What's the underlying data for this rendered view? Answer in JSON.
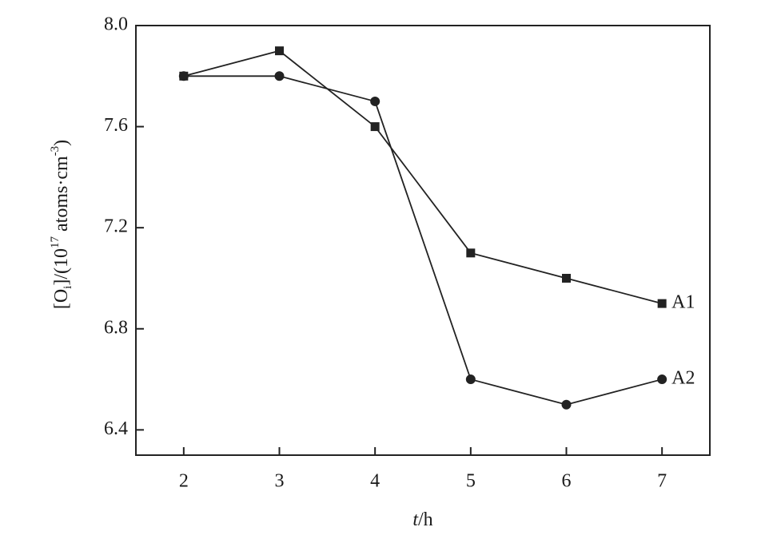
{
  "chart_data": {
    "type": "line",
    "x_label": [
      "t",
      "/h"
    ],
    "y_label": [
      "[O",
      "i",
      "]/(10",
      "17",
      " atoms·cm",
      "-3",
      ")"
    ],
    "x": [
      2,
      3,
      4,
      5,
      6,
      7
    ],
    "series": [
      {
        "name": "A1",
        "color": "#222222",
        "marker": "square",
        "values": [
          7.8,
          7.9,
          7.6,
          7.1,
          7.0,
          6.9
        ]
      },
      {
        "name": "A2",
        "color": "#222222",
        "marker": "circle",
        "values": [
          7.8,
          7.8,
          7.7,
          6.6,
          6.5,
          6.6
        ]
      }
    ],
    "xlim": [
      1.5,
      7.5
    ],
    "ylim": [
      6.3,
      8.0
    ],
    "xticks": [
      2,
      3,
      4,
      5,
      6,
      7
    ],
    "yticks": [
      {
        "value": 8,
        "label": "8.0"
      },
      7.6,
      7.2,
      6.8,
      6.4
    ],
    "grid": false
  }
}
